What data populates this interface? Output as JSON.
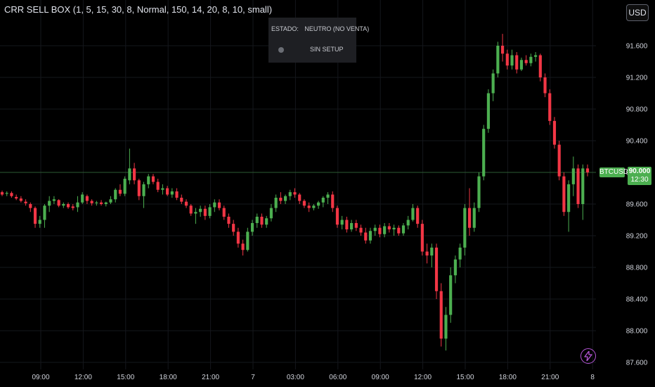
{
  "indicator": {
    "title": "CRR SELL BOX (1, 5, 15, 30, 8, Normal, 150, 14, 20, 8, 10, small)"
  },
  "currency_button": {
    "label": "USD"
  },
  "status_panel": {
    "label": "ESTADO:",
    "value": "NEUTRO (NO VENTA)",
    "setup": "SIN SETUP",
    "dot_color": "#6a6d74",
    "bg_color": "#1e1f23"
  },
  "symbol_badge": {
    "label": "BTCUSD",
    "price": "90.000",
    "countdown": "12:30",
    "color": "#4caf50"
  },
  "colors": {
    "up": "#4caf50",
    "down": "#f23645",
    "grid": "#15171c",
    "axis_text": "#d1d4dc",
    "bolt": "#b455d6"
  },
  "icons": {
    "bolt": "lightning-icon"
  },
  "chart_data": {
    "type": "candlestick",
    "y_ticks": [
      "91.600",
      "91.200",
      "90.800",
      "90.400",
      "90.000",
      "89.600",
      "89.200",
      "88.800",
      "88.400",
      "88.000",
      "87.600"
    ],
    "ylim": [
      87.55,
      91.85
    ],
    "x_ticks": [
      "09:00",
      "12:00",
      "15:00",
      "18:00",
      "21:00",
      "7",
      "03:00",
      "06:00",
      "09:00",
      "12:00",
      "15:00",
      "18:00",
      "21:00",
      "8"
    ],
    "current_price": 90.0,
    "candles_ohlc": [
      [
        89.75,
        89.77,
        89.7,
        89.72
      ],
      [
        89.73,
        89.76,
        89.7,
        89.74
      ],
      [
        89.74,
        89.76,
        89.68,
        89.7
      ],
      [
        89.69,
        89.72,
        89.65,
        89.67
      ],
      [
        89.67,
        89.7,
        89.62,
        89.64
      ],
      [
        89.63,
        89.66,
        89.58,
        89.61
      ],
      [
        89.6,
        89.62,
        89.5,
        89.55
      ],
      [
        89.55,
        89.57,
        89.3,
        89.35
      ],
      [
        89.35,
        89.45,
        89.3,
        89.4
      ],
      [
        89.4,
        89.6,
        89.3,
        89.58
      ],
      [
        89.58,
        89.7,
        89.5,
        89.64
      ],
      [
        89.64,
        89.7,
        89.6,
        89.66
      ],
      [
        89.65,
        89.66,
        89.56,
        89.58
      ],
      [
        89.58,
        89.62,
        89.55,
        89.6
      ],
      [
        89.6,
        89.62,
        89.54,
        89.56
      ],
      [
        89.57,
        89.6,
        89.52,
        89.55
      ],
      [
        89.56,
        89.7,
        89.5,
        89.62
      ],
      [
        89.62,
        89.75,
        89.6,
        89.72
      ],
      [
        89.7,
        89.72,
        89.6,
        89.64
      ],
      [
        89.64,
        89.66,
        89.58,
        89.61
      ],
      [
        89.61,
        89.64,
        89.58,
        89.62
      ],
      [
        89.62,
        89.65,
        89.58,
        89.6
      ],
      [
        89.6,
        89.63,
        89.57,
        89.62
      ],
      [
        89.62,
        89.7,
        89.6,
        89.66
      ],
      [
        89.66,
        89.8,
        89.62,
        89.78
      ],
      [
        89.78,
        89.85,
        89.7,
        89.73
      ],
      [
        89.73,
        89.95,
        89.7,
        89.92
      ],
      [
        89.9,
        90.3,
        89.85,
        90.05
      ],
      [
        90.05,
        90.12,
        89.85,
        89.9
      ],
      [
        89.9,
        89.92,
        89.65,
        89.7
      ],
      [
        89.7,
        89.88,
        89.55,
        89.85
      ],
      [
        89.85,
        89.98,
        89.8,
        89.95
      ],
      [
        89.95,
        89.98,
        89.85,
        89.88
      ],
      [
        89.88,
        89.92,
        89.75,
        89.78
      ],
      [
        89.78,
        89.85,
        89.72,
        89.8
      ],
      [
        89.8,
        89.83,
        89.7,
        89.72
      ],
      [
        89.72,
        89.8,
        89.68,
        89.76
      ],
      [
        89.76,
        89.8,
        89.65,
        89.68
      ],
      [
        89.68,
        89.72,
        89.6,
        89.63
      ],
      [
        89.63,
        89.66,
        89.55,
        89.58
      ],
      [
        89.58,
        89.6,
        89.45,
        89.48
      ],
      [
        89.48,
        89.55,
        89.35,
        89.5
      ],
      [
        89.5,
        89.58,
        89.44,
        89.54
      ],
      [
        89.54,
        89.58,
        89.4,
        89.45
      ],
      [
        89.45,
        89.6,
        89.42,
        89.56
      ],
      [
        89.56,
        89.66,
        89.5,
        89.62
      ],
      [
        89.62,
        89.66,
        89.52,
        89.55
      ],
      [
        89.55,
        89.58,
        89.4,
        89.44
      ],
      [
        89.44,
        89.48,
        89.3,
        89.35
      ],
      [
        89.35,
        89.4,
        89.2,
        89.25
      ],
      [
        89.25,
        89.3,
        89.05,
        89.1
      ],
      [
        89.1,
        89.15,
        88.95,
        89.02
      ],
      [
        89.02,
        89.3,
        89.0,
        89.25
      ],
      [
        89.25,
        89.4,
        89.2,
        89.36
      ],
      [
        89.36,
        89.48,
        89.3,
        89.44
      ],
      [
        89.44,
        89.48,
        89.3,
        89.34
      ],
      [
        89.34,
        89.45,
        89.3,
        89.42
      ],
      [
        89.42,
        89.6,
        89.38,
        89.55
      ],
      [
        89.55,
        89.72,
        89.5,
        89.68
      ],
      [
        89.68,
        89.75,
        89.6,
        89.64
      ],
      [
        89.64,
        89.72,
        89.6,
        89.7
      ],
      [
        89.7,
        89.78,
        89.65,
        89.75
      ],
      [
        89.75,
        89.8,
        89.68,
        89.72
      ],
      [
        89.72,
        89.74,
        89.6,
        89.64
      ],
      [
        89.64,
        89.66,
        89.55,
        89.58
      ],
      [
        89.58,
        89.62,
        89.5,
        89.55
      ],
      [
        89.55,
        89.6,
        89.52,
        89.58
      ],
      [
        89.58,
        89.64,
        89.54,
        89.62
      ],
      [
        89.62,
        89.7,
        89.56,
        89.68
      ],
      [
        89.68,
        89.75,
        89.6,
        89.72
      ],
      [
        89.72,
        89.76,
        89.5,
        89.55
      ],
      [
        89.55,
        89.58,
        89.3,
        89.34
      ],
      [
        89.34,
        89.45,
        89.28,
        89.4
      ],
      [
        89.4,
        89.44,
        89.24,
        89.28
      ],
      [
        89.28,
        89.4,
        89.25,
        89.36
      ],
      [
        89.36,
        89.4,
        89.26,
        89.3
      ],
      [
        89.3,
        89.34,
        89.2,
        89.24
      ],
      [
        89.24,
        89.3,
        89.1,
        89.14
      ],
      [
        89.14,
        89.3,
        89.1,
        89.26
      ],
      [
        89.26,
        89.34,
        89.2,
        89.3
      ],
      [
        89.3,
        89.34,
        89.18,
        89.22
      ],
      [
        89.22,
        89.36,
        89.18,
        89.32
      ],
      [
        89.32,
        89.36,
        89.24,
        89.28
      ],
      [
        89.28,
        89.34,
        89.2,
        89.3
      ],
      [
        89.3,
        89.33,
        89.2,
        89.23
      ],
      [
        89.23,
        89.36,
        89.2,
        89.33
      ],
      [
        89.33,
        89.45,
        89.28,
        89.4
      ],
      [
        89.4,
        89.6,
        89.38,
        89.55
      ],
      [
        89.55,
        89.58,
        89.3,
        89.35
      ],
      [
        89.35,
        89.4,
        88.95,
        89.0
      ],
      [
        89.0,
        89.1,
        88.85,
        88.95
      ],
      [
        88.95,
        89.1,
        88.8,
        89.05
      ],
      [
        89.05,
        89.1,
        88.4,
        88.5
      ],
      [
        88.5,
        88.6,
        87.8,
        87.9
      ],
      [
        87.9,
        88.3,
        87.75,
        88.2
      ],
      [
        88.2,
        88.8,
        88.1,
        88.7
      ],
      [
        88.7,
        88.95,
        88.6,
        88.9
      ],
      [
        88.9,
        89.1,
        88.8,
        89.05
      ],
      [
        89.05,
        89.6,
        88.95,
        89.55
      ],
      [
        89.55,
        89.8,
        89.2,
        89.3
      ],
      [
        89.3,
        89.62,
        89.25,
        89.55
      ],
      [
        89.55,
        90.0,
        89.5,
        89.95
      ],
      [
        89.95,
        90.6,
        89.9,
        90.55
      ],
      [
        90.55,
        91.05,
        90.5,
        91.0
      ],
      [
        91.0,
        91.3,
        90.9,
        91.25
      ],
      [
        91.25,
        91.65,
        91.2,
        91.6
      ],
      [
        91.6,
        91.75,
        91.4,
        91.5
      ],
      [
        91.5,
        91.55,
        91.3,
        91.35
      ],
      [
        91.35,
        91.55,
        91.3,
        91.48
      ],
      [
        91.48,
        91.52,
        91.25,
        91.3
      ],
      [
        91.3,
        91.45,
        91.28,
        91.42
      ],
      [
        91.42,
        91.48,
        91.35,
        91.38
      ],
      [
        91.38,
        91.5,
        91.34,
        91.46
      ],
      [
        91.46,
        91.52,
        91.4,
        91.48
      ],
      [
        91.48,
        91.5,
        91.15,
        91.2
      ],
      [
        91.2,
        91.25,
        90.95,
        91.0
      ],
      [
        91.0,
        91.05,
        90.6,
        90.65
      ],
      [
        90.65,
        90.7,
        90.3,
        90.35
      ],
      [
        90.35,
        90.4,
        89.9,
        89.95
      ],
      [
        89.95,
        90.0,
        89.45,
        89.5
      ],
      [
        89.5,
        89.9,
        89.25,
        89.85
      ],
      [
        89.85,
        90.2,
        89.7,
        90.05
      ],
      [
        90.05,
        90.1,
        89.55,
        89.6
      ],
      [
        89.6,
        90.1,
        89.4,
        90.05
      ],
      [
        90.05,
        90.1,
        89.95,
        90.0
      ]
    ]
  }
}
